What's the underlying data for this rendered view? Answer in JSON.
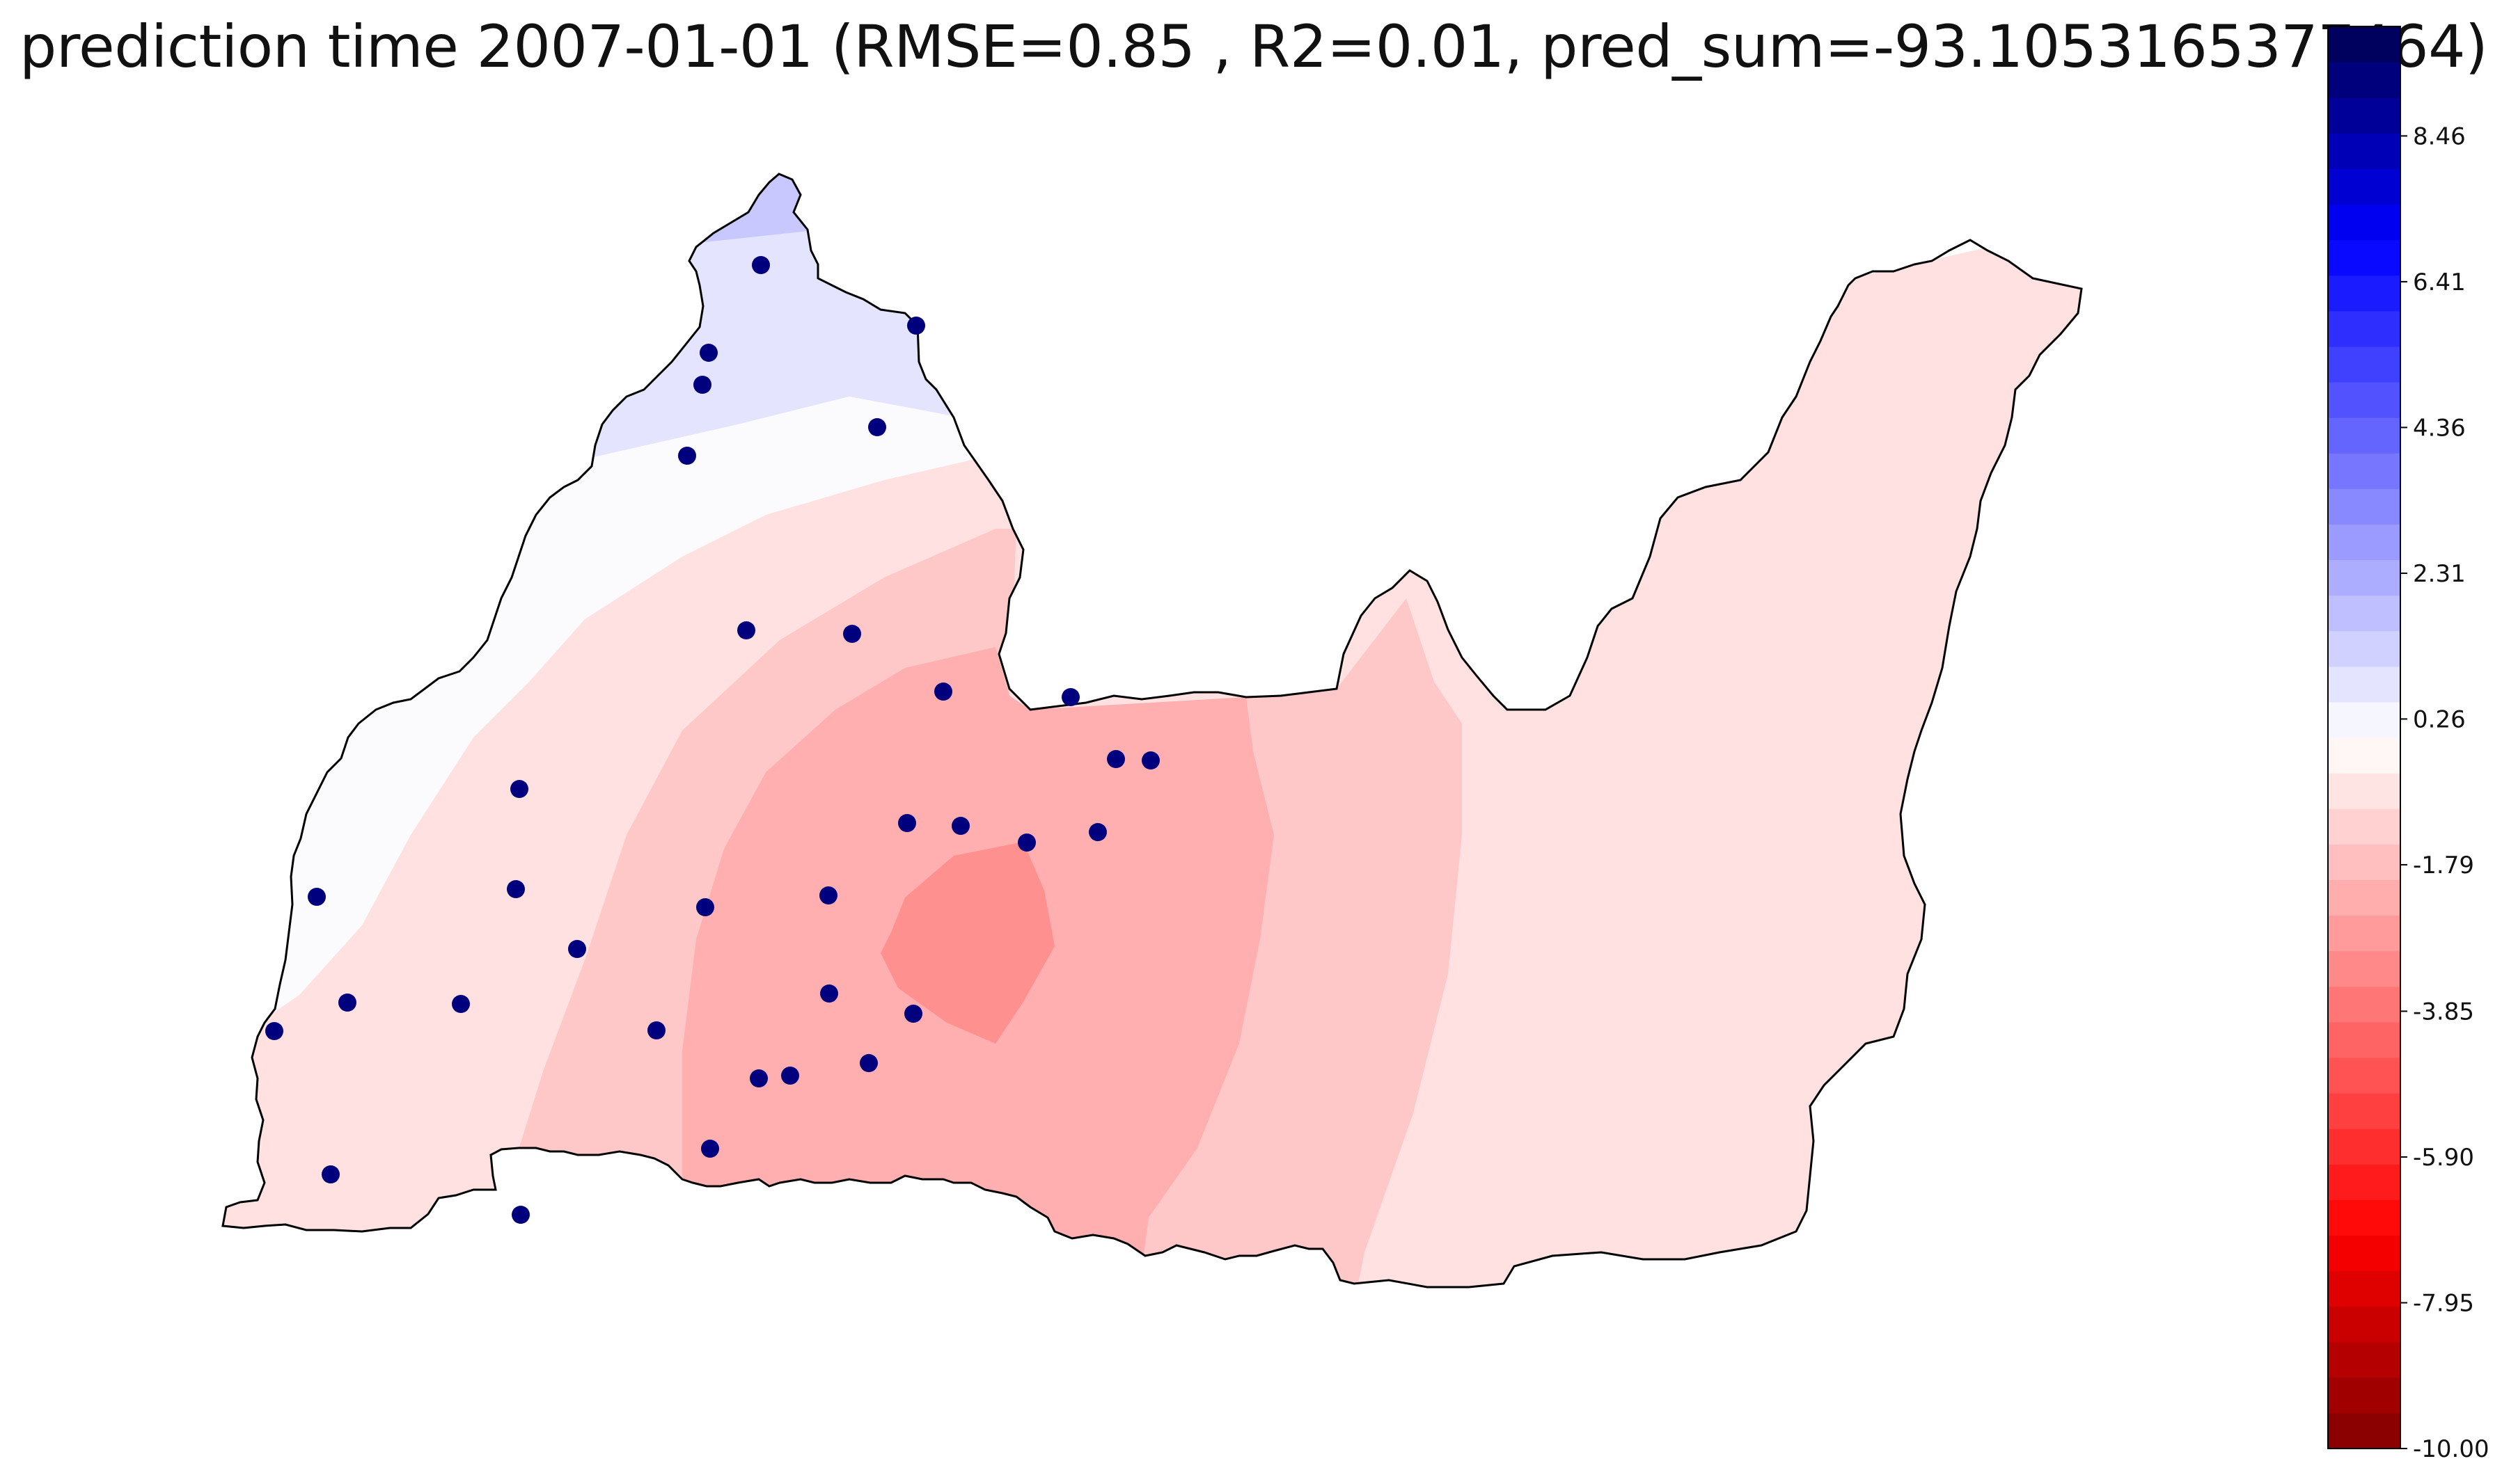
{
  "title": "prediction time 2007-01-01 (RMSE=0.85 , R2=0.01, pred_sum=-93.1053165377464)",
  "colorbar": {
    "min": -10.0,
    "max": 10.0,
    "levels": 40,
    "cmap_low": "#800000",
    "cmap_mid": "#ffffff",
    "cmap_high": "#000050",
    "ticks": [
      "8.46",
      "6.41",
      "4.36",
      "2.31",
      "0.26",
      "-1.79",
      "-3.85",
      "-5.90",
      "-7.95",
      "-10.00"
    ]
  },
  "stations": {
    "color": "#00007f",
    "count": 34
  },
  "map": {
    "boundary_color": "#000000",
    "contour_fills": [
      "#c8c8ff",
      "#e4e4ff",
      "#fbfbfd",
      "#ffe1e1",
      "#ffc8c8",
      "#ffafaf",
      "#ff9090"
    ]
  }
}
